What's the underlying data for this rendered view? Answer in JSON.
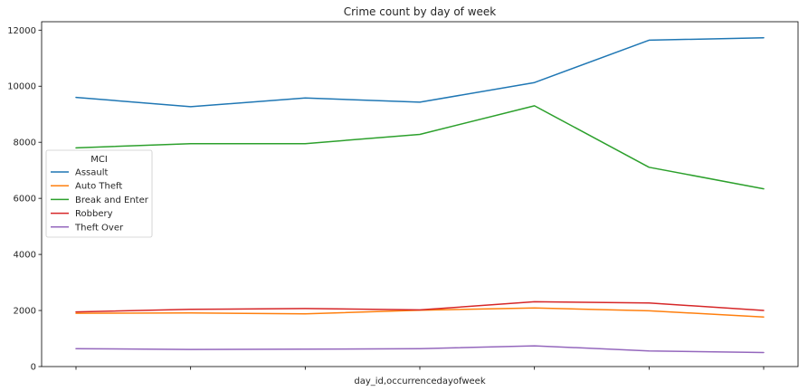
{
  "chart_data": {
    "type": "line",
    "title": "Crime count by day of week",
    "xlabel": "day_id,occurrencedayofweek",
    "ylabel": "",
    "x": [
      1,
      2,
      3,
      4,
      5,
      6,
      7
    ],
    "xticklabels": [
      "",
      "",
      "",
      "",
      "",
      "",
      ""
    ],
    "ylim": [
      0,
      12300
    ],
    "yticks": [
      0,
      2000,
      4000,
      6000,
      8000,
      10000,
      12000
    ],
    "grid": false,
    "legend": {
      "title": "MCI",
      "placement": "center-left"
    },
    "series": [
      {
        "name": "Assault",
        "color": "#1f77b4",
        "values": [
          9600,
          9270,
          9580,
          9430,
          10130,
          11640,
          11730
        ]
      },
      {
        "name": "Auto Theft",
        "color": "#ff7f0e",
        "values": [
          1900,
          1910,
          1880,
          2010,
          2090,
          1990,
          1770
        ]
      },
      {
        "name": "Break and Enter",
        "color": "#2ca02c",
        "values": [
          7800,
          7950,
          7950,
          8280,
          9300,
          7110,
          6340
        ]
      },
      {
        "name": "Robbery",
        "color": "#d62728",
        "values": [
          1950,
          2040,
          2070,
          2020,
          2310,
          2270,
          2000
        ]
      },
      {
        "name": "Theft Over",
        "color": "#9467bd",
        "values": [
          640,
          610,
          620,
          640,
          740,
          560,
          500
        ]
      }
    ]
  }
}
